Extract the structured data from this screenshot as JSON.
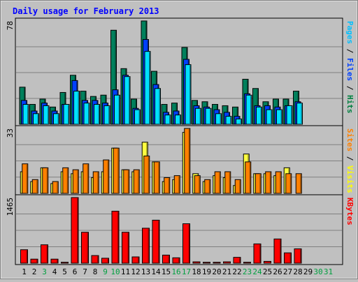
{
  "chart_data": {
    "type": "bar",
    "title": "Daily usage for February 2013",
    "x": [
      "1",
      "2",
      "3",
      "4",
      "5",
      "6",
      "7",
      "8",
      "9",
      "10",
      "11",
      "12",
      "13",
      "14",
      "15",
      "16",
      "17",
      "18",
      "19",
      "20",
      "21",
      "22",
      "23",
      "24",
      "25",
      "26",
      "27",
      "28",
      "29",
      "30",
      "31"
    ],
    "weekend_days": [
      "3",
      "9",
      "10",
      "16",
      "17",
      "23",
      "24",
      "30",
      "31"
    ],
    "panels": [
      {
        "id": "hits",
        "max_label": "78",
        "ylim": [
          0,
          78
        ],
        "right_label_parts": [
          {
            "text": "Pages",
            "color": "#00c0ff"
          },
          {
            "text": " / ",
            "color": "#000000"
          },
          {
            "text": "Files",
            "color": "#0040ff"
          },
          {
            "text": " / ",
            "color": "#000000"
          },
          {
            "text": "Hits",
            "color": "#008040"
          }
        ],
        "series": [
          {
            "name": "Hits",
            "color": "#00805c",
            "values": [
              28,
              15,
              19,
              13,
              24,
              37,
              25,
              21,
              22,
              71,
              42,
              19,
              78,
              40,
              15,
              16,
              58,
              18,
              17,
              15,
              14,
              13,
              34,
              27,
              17,
              19,
              19,
              25,
              null,
              null,
              null
            ]
          },
          {
            "name": "Files",
            "color": "#0040ff",
            "values": [
              18,
              10,
              16,
              10,
              15,
              33,
              18,
              18,
              16,
              26,
              37,
              12,
              64,
              30,
              9,
              10,
              49,
              14,
              13,
              11,
              9,
              6,
              23,
              14,
              14,
              13,
              14,
              17,
              null,
              null,
              null
            ]
          },
          {
            "name": "Pages",
            "color": "#00e0ff",
            "values": [
              15,
              8,
              14,
              8,
              15,
              25,
              16,
              15,
              14,
              22,
              36,
              11,
              55,
              27,
              7,
              7,
              45,
              12,
              12,
              8,
              6,
              4,
              22,
              13,
              11,
              11,
              14,
              16,
              null,
              null,
              null
            ]
          }
        ]
      },
      {
        "id": "visits",
        "max_label": "33",
        "ylim": [
          0,
          33
        ],
        "right_label_parts": [
          {
            "text": "Sites",
            "color": "#ff8000"
          },
          {
            "text": " / ",
            "color": "#000000"
          },
          {
            "text": "Visits",
            "color": "#ffff00"
          }
        ],
        "series": [
          {
            "name": "Visits",
            "color": "#ffff40",
            "values": [
              11,
              6,
              13,
              5,
              11,
              10,
              11,
              8,
              11,
              23,
              12,
              11,
              26,
              16,
              6,
              7,
              31,
              10,
              6,
              9,
              8,
              4,
              20,
              10,
              10,
              9,
              13,
              null,
              null,
              null,
              null
            ]
          },
          {
            "name": "Sites",
            "color": "#ff8000",
            "values": [
              15,
              7,
              13,
              6,
              13,
              12,
              15,
              11,
              17,
              23,
              12,
              12,
              19,
              16,
              8,
              9,
              33,
              9,
              7,
              11,
              11,
              7,
              16,
              10,
              11,
              11,
              10,
              10,
              null,
              null,
              null
            ]
          }
        ]
      },
      {
        "id": "kbytes",
        "max_label": "1465",
        "ylim": [
          0,
          1465
        ],
        "right_label_parts": [
          {
            "text": "KBytes",
            "color": "#ff0000"
          }
        ],
        "series": [
          {
            "name": "KBytes",
            "color": "#ff0000",
            "values": [
              300,
              90,
              410,
              90,
              20,
              1465,
              690,
              170,
              110,
              1160,
              690,
              140,
              780,
              960,
              180,
              120,
              880,
              30,
              20,
              20,
              30,
              130,
              20,
              430,
              40,
              540,
              230,
              320,
              null,
              null,
              null
            ]
          }
        ]
      }
    ]
  },
  "colors": {
    "background": "#c0c0c0",
    "grid": "#808080",
    "title": "#0000ff",
    "weekday_label": "#000000",
    "weekend_label": "#00a040"
  }
}
